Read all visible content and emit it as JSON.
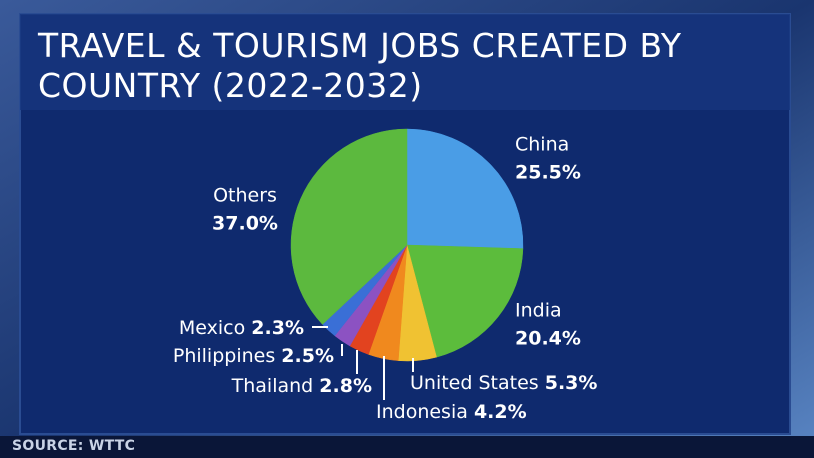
{
  "chart_data": {
    "type": "pie",
    "title": "TRAVEL & TOURISM JOBS CREATED BY COUNTRY (2022-2032)",
    "categories": [
      "China",
      "India",
      "United States",
      "Indonesia",
      "Thailand",
      "Philippines",
      "Mexico",
      "Others"
    ],
    "values": [
      25.5,
      20.4,
      5.3,
      4.2,
      2.8,
      2.5,
      2.3,
      37.0
    ],
    "value_labels": [
      "25.5%",
      "20.4%",
      "5.3%",
      "4.2%",
      "2.8%",
      "2.5%",
      "2.3%",
      "37.0%"
    ],
    "colors": [
      "#4a9de6",
      "#5cbc3c",
      "#f0c232",
      "#f0891e",
      "#e2431f",
      "#8c52c2",
      "#3a6fd6",
      "#5cb93e"
    ],
    "source": "SOURCE: WTTC"
  }
}
